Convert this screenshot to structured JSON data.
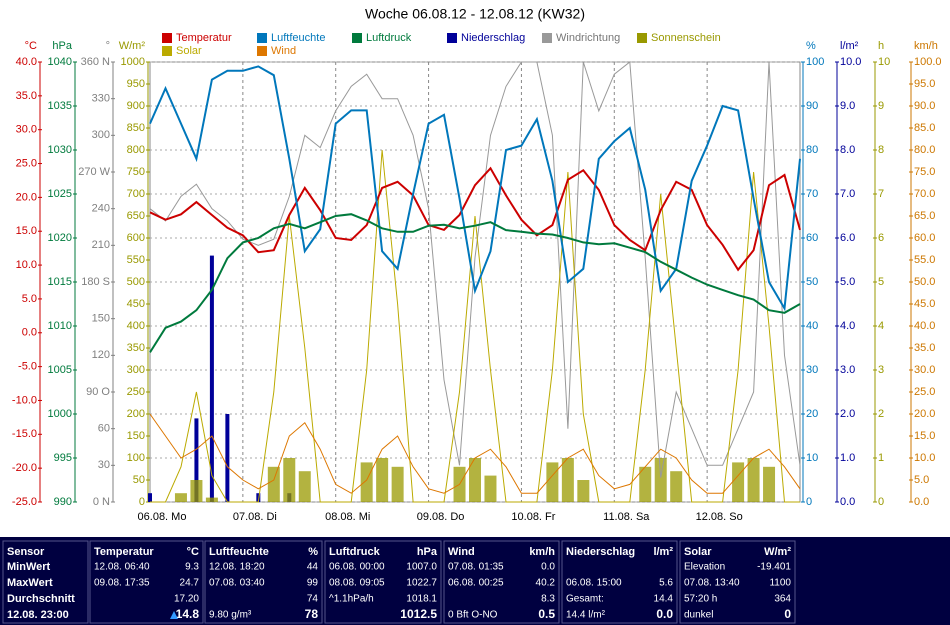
{
  "chart_data": {
    "type": "line",
    "title": "Woche 06.08.12 - 12.08.12 (KW32)",
    "grid": true,
    "categories": [
      "06.08. Mo",
      null,
      null,
      null,
      null,
      null,
      "07.08. Di",
      null,
      null,
      null,
      null,
      null,
      "08.08. Mi",
      null,
      null,
      null,
      null,
      null,
      "09.08. Do",
      null,
      null,
      null,
      null,
      null,
      "10.08. Fr",
      null,
      null,
      null,
      null,
      null,
      "11.08. Sa",
      null,
      null,
      null,
      null,
      null,
      "12.08. So",
      null,
      null,
      null,
      null,
      null,
      null
    ],
    "axes": [
      {
        "unit": "°C",
        "side": "left",
        "color": "#cc0000",
        "lim": [
          -25,
          40
        ],
        "ticks": [
          {
            "value": -25,
            "label": "-25.0"
          },
          {
            "value": -20,
            "label": "-20.0"
          },
          {
            "value": -15,
            "label": "-15.0"
          },
          {
            "value": -10,
            "label": "-10.0"
          },
          {
            "value": -5,
            "label": "-5.0"
          },
          {
            "value": 0,
            "label": "0.0"
          },
          {
            "value": 5,
            "label": "5.0"
          },
          {
            "value": 10,
            "label": "10.0"
          },
          {
            "value": 15,
            "label": "15.0"
          },
          {
            "value": 20,
            "label": "20.0"
          },
          {
            "value": 25,
            "label": "25.0"
          },
          {
            "value": 30,
            "label": "30.0"
          },
          {
            "value": 35,
            "label": "35.0"
          },
          {
            "value": 40,
            "label": "40.0"
          }
        ]
      },
      {
        "unit": "hPa",
        "side": "left",
        "color": "#007a3d",
        "lim": [
          990,
          1040
        ],
        "ticks": [
          990,
          995,
          1000,
          1005,
          1010,
          1015,
          1020,
          1025,
          1030,
          1035,
          1040
        ]
      },
      {
        "unit": "°",
        "side": "left",
        "color": "#808080",
        "lim": [
          0,
          360
        ],
        "ticks": [
          {
            "value": 0,
            "label": "0 N"
          },
          30,
          60,
          {
            "value": 90,
            "label": "90 O"
          },
          120,
          150,
          {
            "value": 180,
            "label": "180 S"
          },
          210,
          240,
          {
            "value": 270,
            "label": "270 W"
          },
          300,
          330,
          {
            "value": 360,
            "label": "360 N"
          }
        ]
      },
      {
        "unit": "W/m²",
        "side": "left",
        "color": "#999900",
        "lim": [
          0,
          1000
        ],
        "ticks": [
          0,
          50,
          100,
          150,
          200,
          250,
          300,
          350,
          400,
          450,
          500,
          550,
          600,
          650,
          700,
          750,
          800,
          850,
          900,
          950,
          1000
        ]
      },
      {
        "unit": "%",
        "side": "right",
        "color": "#0077bb",
        "lim": [
          0,
          100
        ],
        "ticks": [
          0,
          10,
          20,
          30,
          40,
          50,
          60,
          70,
          80,
          90,
          100
        ]
      },
      {
        "unit": "l/m²",
        "side": "right",
        "color": "#000099",
        "lim": [
          0,
          10
        ],
        "ticks": [
          {
            "value": 0,
            "label": "0.0"
          },
          {
            "value": 1,
            "label": "1.0"
          },
          {
            "value": 2,
            "label": "2.0"
          },
          {
            "value": 3,
            "label": "3.0"
          },
          {
            "value": 4,
            "label": "4.0"
          },
          {
            "value": 5,
            "label": "5.0"
          },
          {
            "value": 6,
            "label": "6.0"
          },
          {
            "value": 7,
            "label": "7.0"
          },
          {
            "value": 8,
            "label": "8.0"
          },
          {
            "value": 9,
            "label": "9.0"
          },
          {
            "value": 10,
            "label": "10.0"
          }
        ]
      },
      {
        "unit": "h",
        "side": "right",
        "color": "#999900",
        "lim": [
          0,
          10
        ],
        "ticks": [
          0,
          1,
          2,
          3,
          4,
          5,
          6,
          7,
          8,
          9,
          10
        ]
      },
      {
        "unit": "km/h",
        "side": "right",
        "color": "#cc7700",
        "lim": [
          0,
          100
        ],
        "ticks": [
          {
            "value": 0,
            "label": "0.0"
          },
          {
            "value": 5,
            "label": "5.0"
          },
          {
            "value": 10,
            "label": "10.0"
          },
          {
            "value": 15,
            "label": "15.0"
          },
          {
            "value": 20,
            "label": "20.0"
          },
          {
            "value": 25,
            "label": "25.0"
          },
          {
            "value": 30,
            "label": "30.0"
          },
          {
            "value": 35,
            "label": "35.0"
          },
          {
            "value": 40,
            "label": "40.0"
          },
          {
            "value": 45,
            "label": "45.0"
          },
          {
            "value": 50,
            "label": "50.0"
          },
          {
            "value": 55,
            "label": "55.0"
          },
          {
            "value": 60,
            "label": "60.0"
          },
          {
            "value": 65,
            "label": "65.0"
          },
          {
            "value": 70,
            "label": "70.0"
          },
          {
            "value": 75,
            "label": "75.0"
          },
          {
            "value": 80,
            "label": "80.0"
          },
          {
            "value": 85,
            "label": "85.0"
          },
          {
            "value": 90,
            "label": "90.0"
          },
          {
            "value": 95,
            "label": "95.0"
          },
          {
            "value": 100,
            "label": "100.0"
          }
        ]
      }
    ],
    "series": [
      {
        "name": "Temperatur",
        "color": "#cc0000",
        "axis": 0,
        "values": [
          17.8,
          16.7,
          17.5,
          19.3,
          17.4,
          15.5,
          14.4,
          11.9,
          12.2,
          17.4,
          21.4,
          18.1,
          14.0,
          13.7,
          15.9,
          21.4,
          22.3,
          20.3,
          15.9,
          15.2,
          17.4,
          21.8,
          24.3,
          20.3,
          16.7,
          14.4,
          15.9,
          22.6,
          24.0,
          21.1,
          15.9,
          13.7,
          12.2,
          18.1,
          22.3,
          21.1,
          15.9,
          13.0,
          9.3,
          12.2,
          21.8,
          23.3,
          15.2
        ]
      },
      {
        "name": "Luftfeuchte",
        "color": "#0077bb",
        "axis": 4,
        "values": [
          86,
          94,
          86,
          78,
          96,
          98,
          98,
          99,
          97,
          78,
          57,
          62,
          86,
          89,
          89,
          57,
          53,
          70,
          86,
          88,
          69,
          48,
          57,
          80,
          81,
          87,
          73,
          50,
          53,
          78,
          82,
          85,
          71,
          48,
          53,
          73,
          81,
          90,
          89,
          69,
          50,
          44,
          78
        ]
      },
      {
        "name": "Luftdruck",
        "color": "#007a3d",
        "axis": 1,
        "values": [
          1007.0,
          1009.8,
          1010.5,
          1011.8,
          1014.1,
          1017.7,
          1019.5,
          1020.0,
          1021.1,
          1021.6,
          1021.1,
          1021.8,
          1022.5,
          1022.7,
          1022.0,
          1021.1,
          1020.7,
          1020.7,
          1021.4,
          1021.5,
          1021.1,
          1021.4,
          1021.8,
          1020.9,
          1020.7,
          1020.5,
          1020.4,
          1020.0,
          1019.5,
          1019.3,
          1019.4,
          1018.9,
          1018.4,
          1017.3,
          1016.4,
          1015.5,
          1014.7,
          1014.1,
          1013.5,
          1013.0,
          1011.8,
          1011.5,
          1012.5
        ]
      },
      {
        "name": "Niederschlag",
        "color": "#000099",
        "axis": 5,
        "type": "bar",
        "values": [
          0.2,
          0,
          0,
          1.9,
          5.6,
          2.0,
          0,
          0.2,
          0,
          0.2,
          0,
          0,
          0,
          0,
          0,
          0,
          0,
          0,
          0,
          0,
          0,
          0,
          0,
          0,
          0,
          0,
          0,
          0,
          0,
          0,
          0,
          0,
          0,
          0,
          0,
          0,
          0,
          0,
          0,
          0,
          0,
          0,
          0
        ]
      },
      {
        "name": "Windrichtung",
        "color": "#999999",
        "axis": 2,
        "values": [
          240,
          230,
          250,
          260,
          240,
          230,
          215,
          210,
          215,
          250,
          300,
          290,
          320,
          340,
          350,
          330,
          330,
          300,
          240,
          100,
          30,
          200,
          300,
          340,
          360,
          360,
          300,
          60,
          360,
          320,
          350,
          360,
          200,
          20,
          90,
          60,
          30,
          30,
          60,
          90,
          360,
          120,
          30
        ]
      },
      {
        "name": "Sonnenschein",
        "color": "#999900",
        "axis": 6,
        "type": "bar",
        "values": [
          0,
          0,
          0.2,
          0.5,
          0.1,
          0,
          0,
          0,
          0.8,
          1.0,
          0.7,
          0,
          0,
          0,
          0.9,
          1.0,
          0.8,
          0,
          0,
          0,
          0.8,
          1.0,
          0.6,
          0,
          0,
          0,
          0.9,
          1.0,
          0.5,
          0,
          0,
          0,
          0.8,
          1.0,
          0.7,
          0,
          0,
          0,
          0.9,
          1.0,
          0.8,
          0,
          0
        ]
      },
      {
        "name": "Solar",
        "color": "#bbaa00",
        "axis": 3,
        "values": [
          0,
          0,
          80,
          250,
          60,
          0,
          0,
          0,
          250,
          650,
          350,
          0,
          0,
          0,
          300,
          800,
          450,
          0,
          0,
          0,
          250,
          650,
          300,
          0,
          0,
          0,
          300,
          750,
          200,
          0,
          0,
          0,
          300,
          700,
          350,
          0,
          0,
          0,
          300,
          750,
          400,
          0,
          0
        ]
      },
      {
        "name": "Wind",
        "color": "#dd7700",
        "axis": 7,
        "values": [
          20,
          15,
          10,
          12,
          15,
          8,
          5,
          3,
          5,
          15,
          18,
          12,
          4,
          2,
          5,
          12,
          15,
          8,
          3,
          2,
          4,
          10,
          12,
          8,
          2,
          2,
          6,
          10,
          12,
          6,
          3,
          4,
          8,
          12,
          10,
          5,
          2,
          2,
          6,
          10,
          12,
          8,
          3
        ]
      }
    ]
  },
  "table": {
    "row_labels": [
      "Sensor",
      "MinWert",
      "MaxWert",
      "Durchschnitt",
      "12.08. 23:00"
    ],
    "columns": [
      {
        "title": "Temperatur",
        "unit": "°C",
        "rows": [
          [
            "12.08. 06:40",
            "9.3"
          ],
          [
            "09.08. 17:35",
            "24.7"
          ],
          [
            null,
            "17.20"
          ],
          [
            null,
            "14.8"
          ]
        ]
      },
      {
        "title": "Luftfeuchte",
        "unit": "%",
        "rows": [
          [
            "12.08. 18:20",
            "44"
          ],
          [
            "07.08. 03:40",
            "99"
          ],
          [
            null,
            "74"
          ],
          [
            "9.80 g/m³",
            "78"
          ]
        ]
      },
      {
        "title": "Luftdruck",
        "unit": "hPa",
        "rows": [
          [
            "06.08. 00:00",
            "1007.0"
          ],
          [
            "08.08. 09:05",
            "1022.7"
          ],
          [
            "^1.1hPa/h",
            "1018.1"
          ],
          [
            null,
            "1012.5"
          ]
        ]
      },
      {
        "title": "Wind",
        "unit": "km/h",
        "rows": [
          [
            "07.08. 01:35",
            "0.0"
          ],
          [
            "06.08. 00:25",
            "40.2"
          ],
          [
            null,
            "8.3"
          ],
          [
            "0 Bft O-NO",
            "0.5"
          ]
        ]
      },
      {
        "title": "Niederschlag",
        "unit": "l/m²",
        "rows": [
          [
            null,
            null
          ],
          [
            "06.08. 15:00",
            "5.6"
          ],
          [
            "Gesamt:",
            "14.4"
          ],
          [
            "14.4 l/m²",
            "0.0"
          ]
        ]
      },
      {
        "title": "Solar",
        "unit": "W/m²",
        "rows": [
          [
            "Elevation",
            "-19.401"
          ],
          [
            "07.08. 13:40",
            "1100"
          ],
          [
            "57:20 h",
            "364"
          ],
          [
            "dunkel",
            "0"
          ]
        ]
      }
    ]
  }
}
